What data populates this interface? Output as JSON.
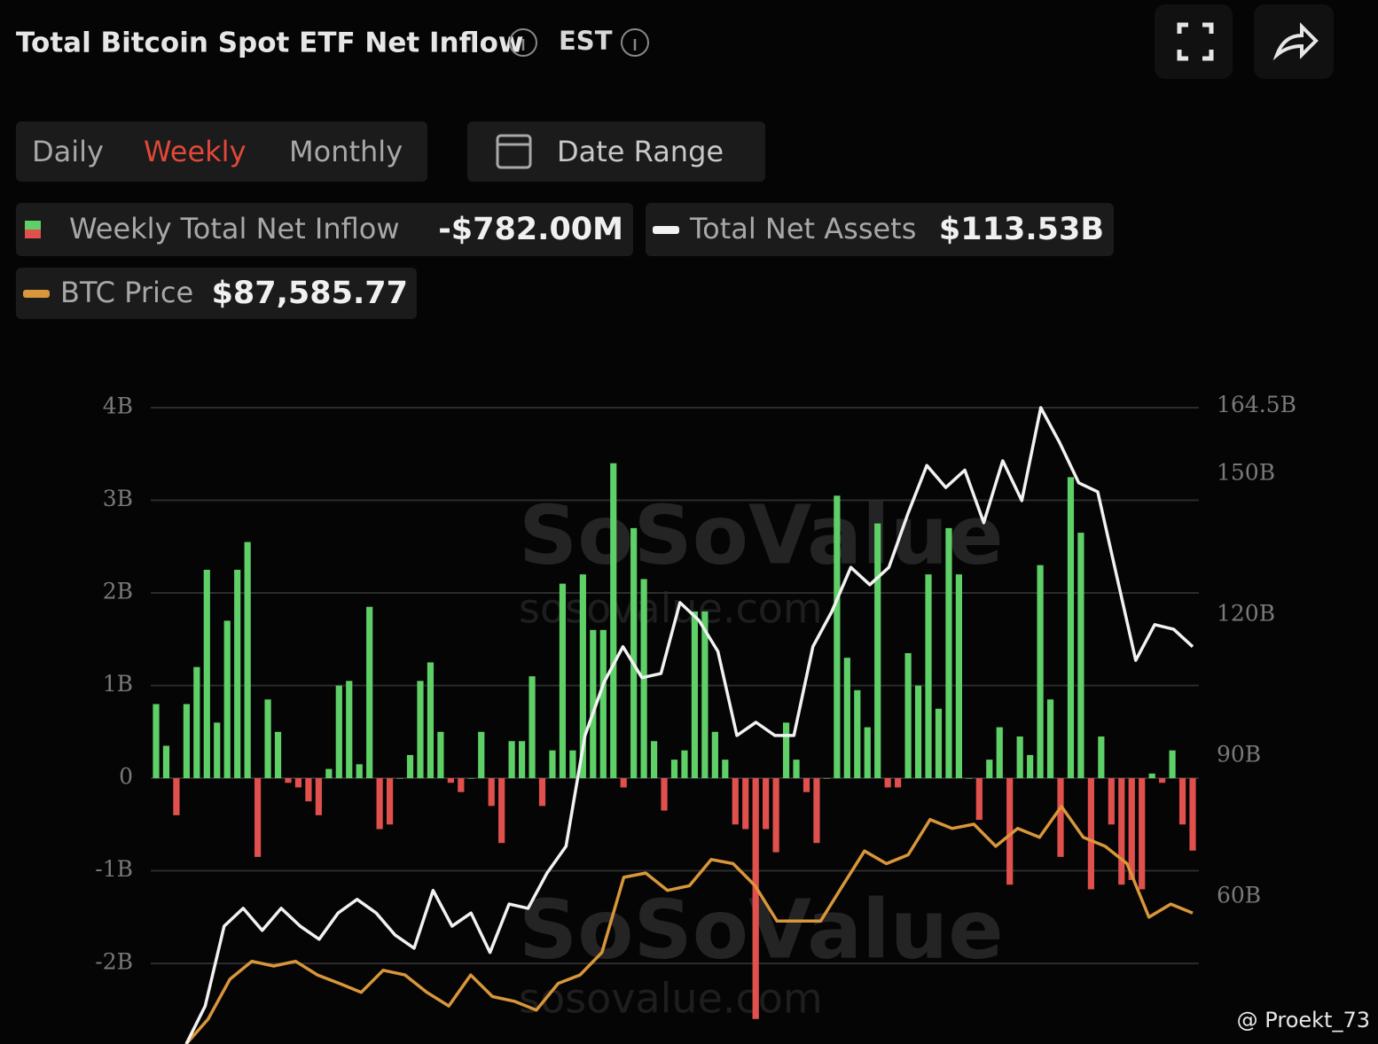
{
  "header": {
    "title": "Total Bitcoin Spot ETF Net Inflow",
    "timezone": "EST",
    "tabs": [
      "Daily",
      "Weekly",
      "Monthly"
    ],
    "active_tab": "Weekly",
    "date_button": "Date Range"
  },
  "watermarks": [
    "SoSoValue",
    "sosovalue.com",
    "SoSoValue",
    "sosovalue.com"
  ],
  "credit": "@ Proekt_73",
  "chart_data": {
    "type": "bar",
    "ylim": [
      -2.87,
      4.0
    ],
    "yticks": [
      {
        "value": 4,
        "label": "4B"
      },
      {
        "value": 3,
        "label": "3B"
      },
      {
        "value": 2,
        "label": "2B"
      },
      {
        "value": 1,
        "label": "1B"
      },
      0,
      {
        "value": -1,
        "label": "-1B"
      },
      {
        "value": -2,
        "label": "-2B"
      }
    ],
    "y2lim": [
      28.7,
      164.2
    ],
    "y2ticks": [
      {
        "value": 164.5,
        "label": "164.5B"
      },
      {
        "value": 150,
        "label": "150B"
      },
      {
        "value": 120,
        "label": "120B"
      },
      {
        "value": 90,
        "label": "90B"
      },
      {
        "value": 60,
        "label": "60B"
      }
    ],
    "grid": true,
    "series": [
      {
        "name": "Weekly Total Net Inflow",
        "latest_label": "-$782.00M",
        "type": "bar",
        "color": "#5fcf68",
        "negative_color": "#e0504c",
        "values": [
          0.8,
          0.35,
          -0.4,
          0.8,
          1.2,
          2.25,
          0.6,
          1.7,
          2.25,
          2.55,
          -0.85,
          0.85,
          0.5,
          -0.05,
          -0.1,
          -0.25,
          -0.4,
          0.1,
          1.0,
          1.05,
          0.15,
          1.85,
          -0.55,
          -0.5,
          0,
          0.25,
          1.05,
          1.25,
          0.5,
          -0.05,
          -0.15,
          0,
          0.5,
          -0.3,
          -0.7,
          0.4,
          0.4,
          1.1,
          -0.3,
          0.3,
          2.1,
          0.3,
          2.2,
          1.6,
          1.6,
          3.4,
          -0.1,
          2.7,
          2.15,
          0.4,
          -0.35,
          0.2,
          0.3,
          1.8,
          1.8,
          0.5,
          0.2,
          -0.5,
          -0.55,
          -2.6,
          -0.55,
          -0.8,
          0.6,
          0.2,
          -0.15,
          -0.7,
          0,
          3.05,
          1.3,
          0.95,
          0.55,
          2.75,
          -0.1,
          -0.1,
          1.35,
          1.0,
          2.2,
          0.75,
          2.7,
          2.2,
          0,
          -0.45,
          0.2,
          0.55,
          -1.15,
          0.45,
          0.25,
          2.3,
          0.85,
          -0.85,
          3.25,
          2.65,
          -1.2,
          0.45,
          -0.5,
          -1.15,
          -1.1,
          -1.2,
          0.05,
          -0.05,
          0.3,
          -0.5,
          -0.782
        ]
      },
      {
        "name": "Total Net Assets",
        "latest_label": "$113.53B",
        "type": "line",
        "axis": "y2",
        "color": "#f2f2f2",
        "values": [
          28.7,
          36.8,
          53.8,
          57.6,
          52.9,
          57.6,
          53.8,
          51.0,
          56.6,
          59.5,
          56.6,
          51.9,
          49.1,
          61.4,
          53.8,
          56.6,
          48.2,
          58.5,
          57.6,
          65.1,
          70.8,
          94.4,
          105.7,
          113.3,
          106.7,
          107.6,
          122.7,
          118.9,
          112.3,
          94.4,
          97.2,
          94.4,
          94.4,
          113.3,
          120.8,
          130.2,
          126.5,
          130.2,
          141.6,
          151.9,
          147.2,
          150.9,
          139.7,
          152.9,
          144.4,
          164.2,
          156.7,
          148.2,
          146.3,
          128.4,
          110.4,
          118.0,
          117.0,
          113.3
        ]
      },
      {
        "name": "BTC Price",
        "latest_label": "$87,585.77",
        "type": "line",
        "axis": "y2",
        "color": "#d9963a",
        "values": [
          28.7,
          34.0,
          42.5,
          46.3,
          45.3,
          46.3,
          43.4,
          41.6,
          39.7,
          44.4,
          43.4,
          39.7,
          36.8,
          43.4,
          38.8,
          37.8,
          35.9,
          41.6,
          43.4,
          48.2,
          64.2,
          65.1,
          61.4,
          62.4,
          68.0,
          67.1,
          62.4,
          54.9,
          54.9,
          54.9,
          62.4,
          69.8,
          67.1,
          69.0,
          76.5,
          74.6,
          75.5,
          70.8,
          74.6,
          72.7,
          79.3,
          72.7,
          70.8,
          67.1,
          55.7,
          58.5,
          56.6
        ]
      }
    ]
  }
}
